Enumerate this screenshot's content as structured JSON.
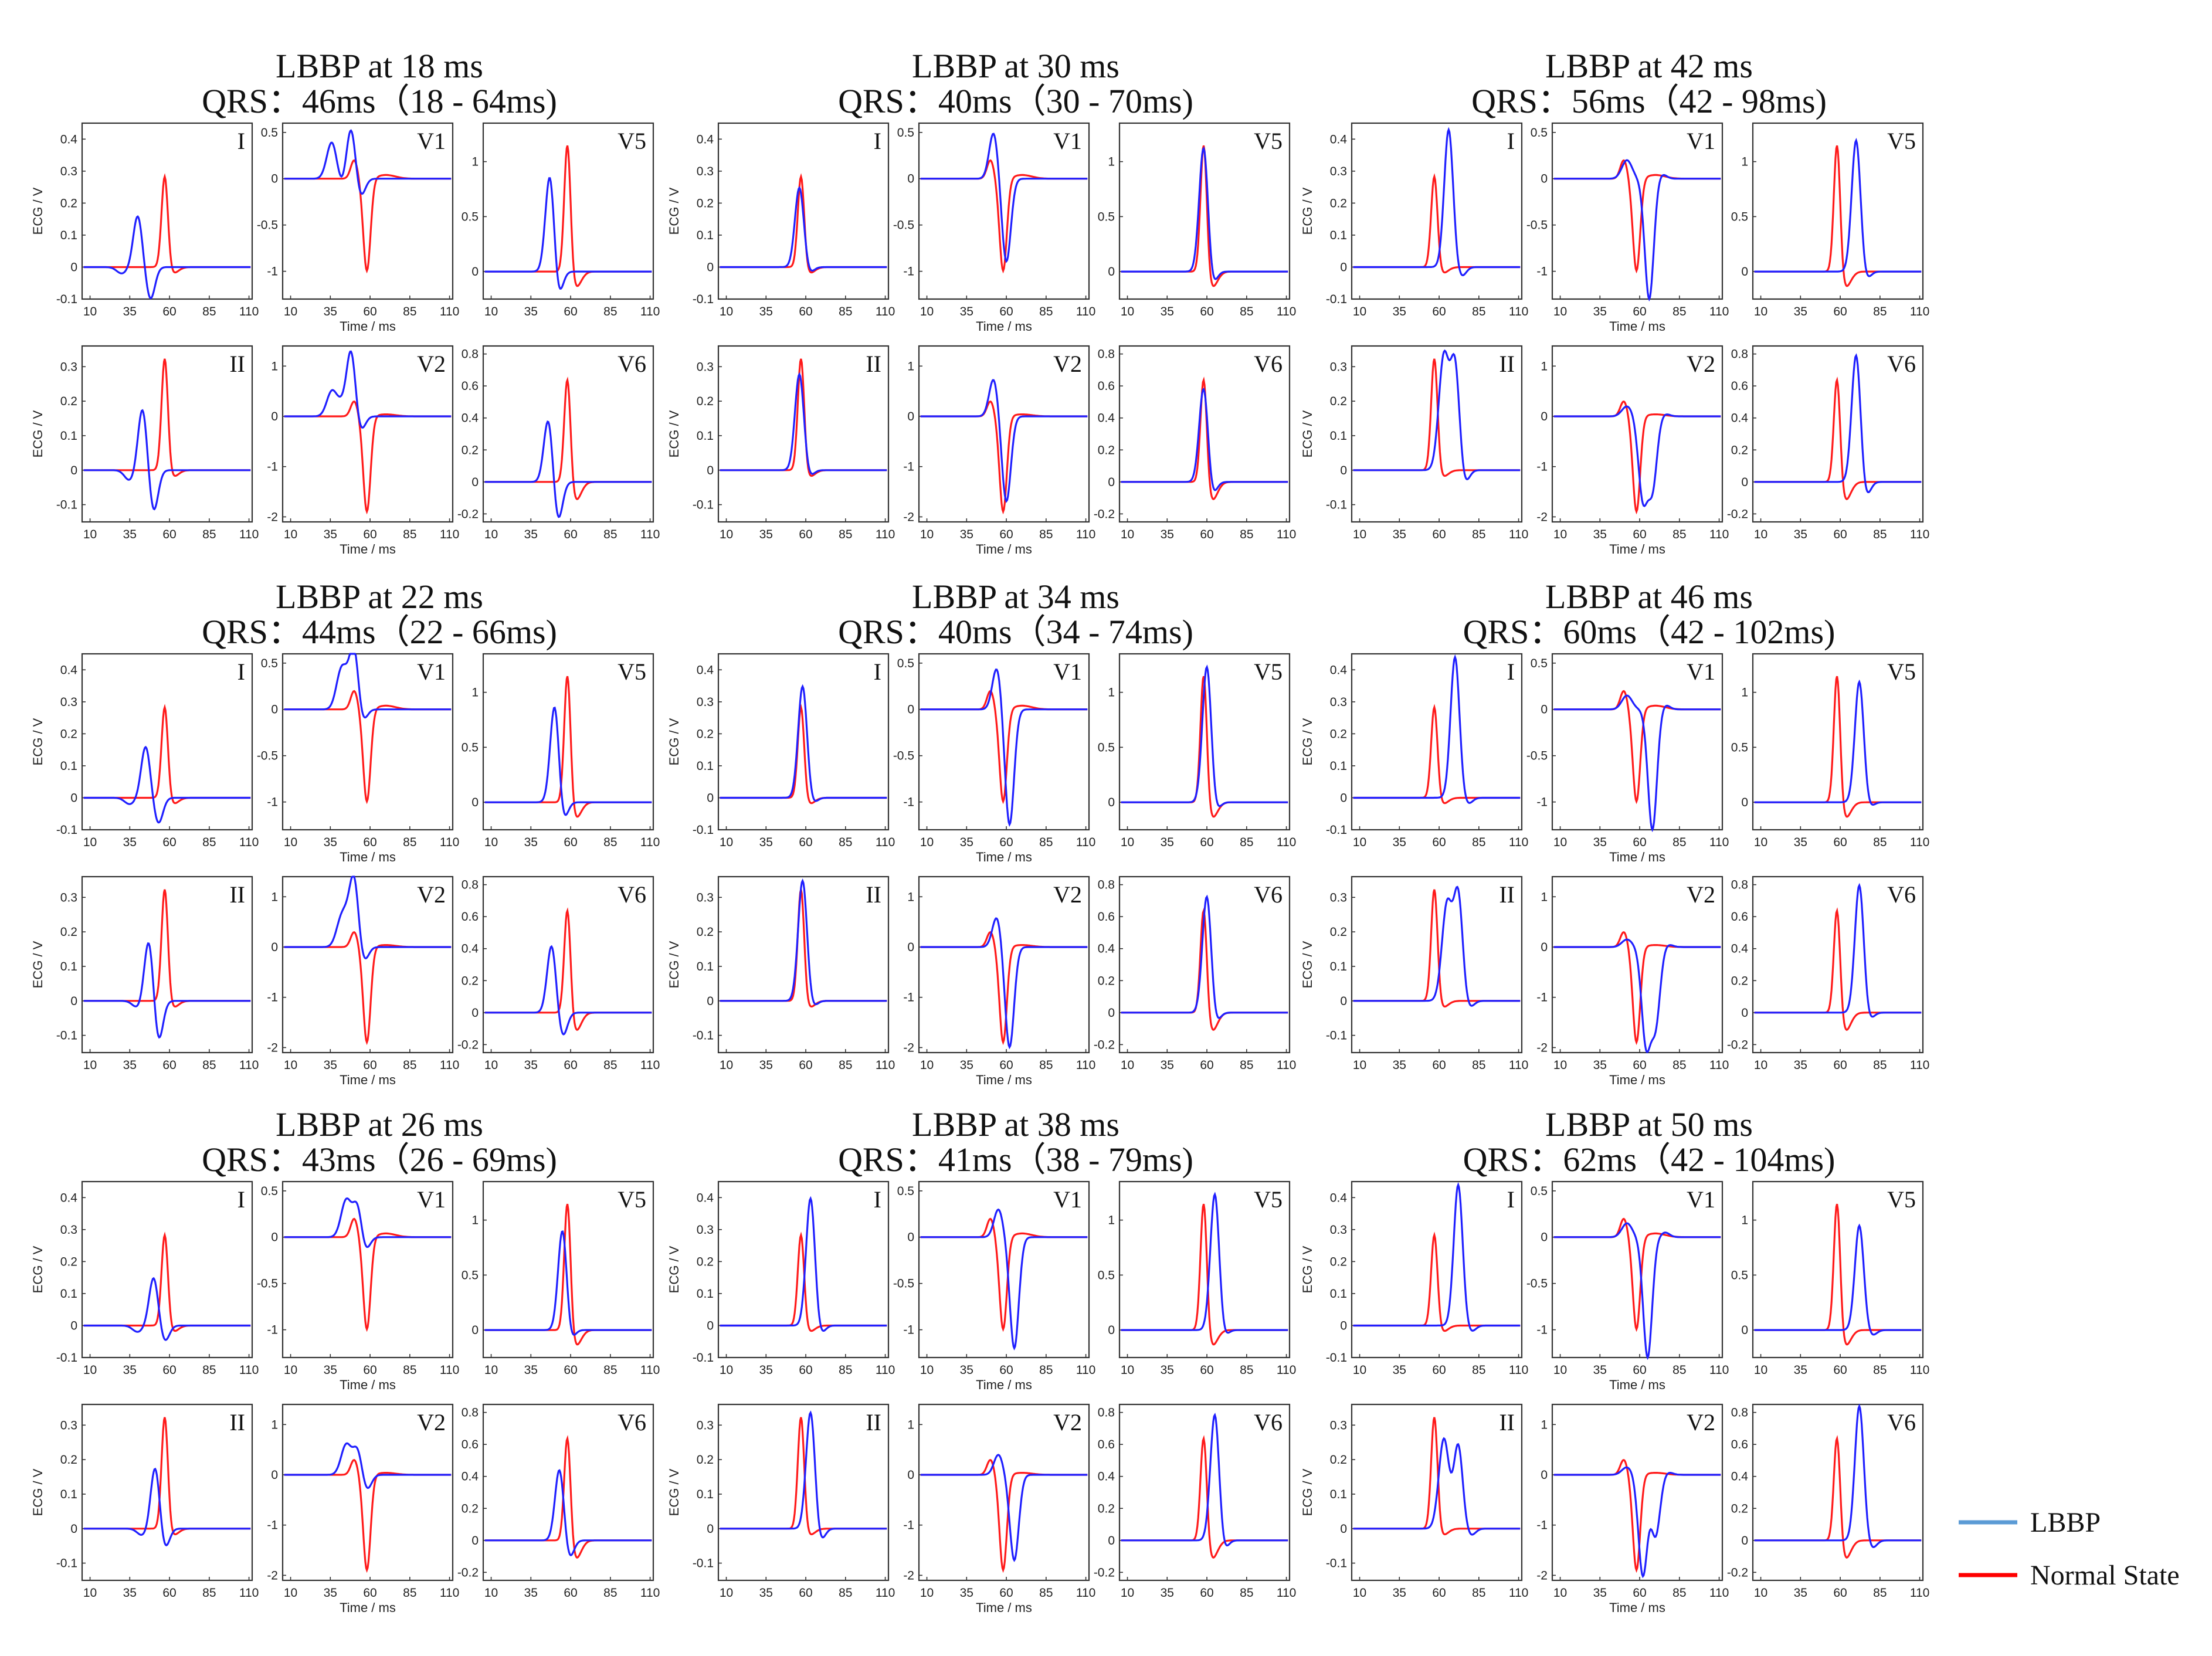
{
  "figure": {
    "legend": [
      {
        "label": "LBBP",
        "color": "#5b9bd5"
      },
      {
        "label": "Normal State",
        "color": "#ff0000"
      }
    ],
    "colors": {
      "lbbp_trace": "#1f1fff",
      "normal_trace": "#ff1a1a",
      "axis": "#333333"
    }
  },
  "chart_data": {
    "type": "line",
    "description_units": {
      "x": "ms",
      "y": "V"
    },
    "shared": {
      "x_ticks": [
        10,
        35,
        60,
        85,
        110
      ],
      "xlim": [
        5,
        112
      ],
      "xlabel": "Time / ms",
      "ylabel": "ECG / V"
    },
    "lead_axes": {
      "I": {
        "ylim": [
          -0.1,
          0.45
        ],
        "yticks": [
          -0.1,
          0,
          0.1,
          0.2,
          0.3,
          0.4
        ],
        "ytick_labels": [
          "-0.1",
          "0",
          "0.1",
          "0.2",
          "0.3",
          "0.4"
        ]
      },
      "V1": {
        "ylim": [
          -1.3,
          0.6
        ],
        "yticks": [
          -1,
          -0.5,
          0,
          0.5
        ],
        "ytick_labels": [
          "-1",
          "-0.5",
          "0",
          "0.5"
        ]
      },
      "V5": {
        "ylim": [
          -0.25,
          1.35
        ],
        "yticks": [
          0,
          0.5,
          1
        ],
        "ytick_labels": [
          "0",
          "0.5",
          "1"
        ]
      },
      "II": {
        "ylim": [
          -0.15,
          0.36
        ],
        "yticks": [
          -0.1,
          0,
          0.1,
          0.2,
          0.3
        ],
        "ytick_labels": [
          "-0.1",
          "0",
          "0.1",
          "0.2",
          "0.3"
        ]
      },
      "V2": {
        "ylim": [
          -2.1,
          1.4
        ],
        "yticks": [
          -2,
          -1,
          0,
          1
        ],
        "ytick_labels": [
          "-2",
          "-1",
          "0",
          "1"
        ]
      },
      "V6": {
        "ylim": [
          -0.25,
          0.85
        ],
        "yticks": [
          -0.2,
          0,
          0.2,
          0.4,
          0.6,
          0.8
        ],
        "ytick_labels": [
          "-0.2",
          "0",
          "0.2",
          "0.4",
          "0.6",
          "0.8"
        ]
      }
    },
    "normal_state": {
      "I": {
        "pre": 0.0,
        "peak_t": 57,
        "peak": 0.29,
        "post": -0.02
      },
      "II": {
        "pre": 0.0,
        "peak_t": 57,
        "peak": 0.33,
        "post": -0.02
      },
      "V1": {
        "pre": 0.0,
        "peak_t": 50,
        "peak": 0.2,
        "min_t": 58,
        "min": -1.0
      },
      "V2": {
        "pre": 0.0,
        "peak_t": 50,
        "peak": 0.3,
        "min_t": 58,
        "min": -1.9
      },
      "V5": {
        "pre": 0.0,
        "peak_t": 58,
        "peak": 1.2,
        "post": -0.15
      },
      "V6": {
        "pre": 0.0,
        "peak_t": 58,
        "peak": 0.68,
        "post": -0.12
      }
    },
    "panels": [
      {
        "title": "LBBP at 18 ms",
        "qrs": "QRS：46ms（18 - 64ms)",
        "pacing_ms": 18,
        "qrs_ms": 46,
        "qrs_range_ms": [
          18,
          64
        ]
      },
      {
        "title": "LBBP at 30 ms",
        "qrs": "QRS：40ms（30 - 70ms)",
        "pacing_ms": 30,
        "qrs_ms": 40,
        "qrs_range_ms": [
          30,
          70
        ]
      },
      {
        "title": "LBBP at 42 ms",
        "qrs": "QRS：56ms（42 - 98ms)",
        "pacing_ms": 42,
        "qrs_ms": 56,
        "qrs_range_ms": [
          42,
          98
        ]
      },
      {
        "title": "LBBP at 22 ms",
        "qrs": "QRS：44ms（22 - 66ms)",
        "pacing_ms": 22,
        "qrs_ms": 44,
        "qrs_range_ms": [
          22,
          66
        ]
      },
      {
        "title": "LBBP at 34 ms",
        "qrs": "QRS：40ms（34 - 74ms)",
        "pacing_ms": 34,
        "qrs_ms": 40,
        "qrs_range_ms": [
          34,
          74
        ]
      },
      {
        "title": "LBBP at 46 ms",
        "qrs": "QRS：60ms（42 - 102ms)",
        "pacing_ms": 46,
        "qrs_ms": 60,
        "qrs_range_ms": [
          42,
          102
        ]
      },
      {
        "title": "LBBP at 26 ms",
        "qrs": "QRS：43ms（26 - 69ms)",
        "pacing_ms": 26,
        "qrs_ms": 43,
        "qrs_range_ms": [
          26,
          69
        ]
      },
      {
        "title": "LBBP at 38 ms",
        "qrs": "QRS：41ms（38 - 79ms)",
        "pacing_ms": 38,
        "qrs_ms": 41,
        "qrs_range_ms": [
          38,
          79
        ]
      },
      {
        "title": "LBBP at 50 ms",
        "qrs": "QRS：62ms（42 - 104ms)",
        "pacing_ms": 50,
        "qrs_ms": 62,
        "qrs_range_ms": [
          42,
          104
        ]
      }
    ],
    "lbbp_by_pacing": {
      "18": {
        "I": {
          "pre": 0,
          "bumps": [
            [
              30,
              -0.02
            ],
            [
              40,
              0.16
            ],
            [
              48,
              -0.1
            ]
          ],
          "end": 0
        },
        "II": {
          "pre": 0,
          "bumps": [
            [
              35,
              -0.03
            ],
            [
              43,
              0.18
            ],
            [
              50,
              -0.12
            ]
          ],
          "end": 0
        },
        "V1": {
          "pre": 0,
          "bumps": [
            [
              36,
              0.4
            ],
            [
              42,
              -0.1
            ],
            [
              48,
              0.55
            ],
            [
              54,
              -0.2
            ]
          ],
          "end": 0
        },
        "V2": {
          "pre": 0,
          "bumps": [
            [
              36,
              0.5
            ],
            [
              42,
              0.2
            ],
            [
              48,
              1.3
            ],
            [
              54,
              -0.3
            ]
          ],
          "end": 0
        },
        "V5": {
          "pre": 0,
          "bumps": [
            [
              47,
              0.9
            ],
            [
              52,
              -0.25
            ]
          ],
          "end": 0
        },
        "V6": {
          "pre": 0,
          "bumps": [
            [
              46,
              0.4
            ],
            [
              52,
              -0.25
            ]
          ],
          "end": 0
        }
      },
      "30": {
        "I": {
          "pre": 0,
          "bumps": [
            [
              56,
              0.25
            ],
            [
              62,
              -0.02
            ]
          ],
          "end": 0
        },
        "II": {
          "pre": 0,
          "bumps": [
            [
              56,
              0.28
            ],
            [
              62,
              -0.02
            ]
          ],
          "end": 0
        },
        "V1": {
          "pre": 0,
          "bumps": [
            [
              52,
              0.5
            ],
            [
              60,
              -0.9
            ]
          ],
          "end": 0
        },
        "V2": {
          "pre": 0,
          "bumps": [
            [
              52,
              0.75
            ],
            [
              60,
              -1.7
            ]
          ],
          "end": 0
        },
        "V5": {
          "pre": 0,
          "bumps": [
            [
              58,
              1.15
            ],
            [
              63,
              -0.15
            ]
          ],
          "end": 0
        },
        "V6": {
          "pre": 0,
          "bumps": [
            [
              58,
              0.6
            ],
            [
              63,
              -0.1
            ]
          ],
          "end": 0
        }
      },
      "42": {
        "I": {
          "pre": 0,
          "bumps": [
            [
              66,
              0.43
            ],
            [
              74,
              -0.03
            ]
          ],
          "end": 0
        },
        "II": {
          "pre": 0,
          "bumps": [
            [
              63,
              0.33
            ],
            [
              70,
              0.3
            ],
            [
              76,
              -0.04
            ]
          ],
          "end": 0
        },
        "V1": {
          "pre": 0,
          "bumps": [
            [
              52,
              0.2
            ],
            [
              66,
              -1.3
            ],
            [
              74,
              0.05
            ]
          ],
          "end": 0
        },
        "V2": {
          "pre": 0,
          "bumps": [
            [
              52,
              0.2
            ],
            [
              62,
              -1.6
            ],
            [
              68,
              -1.4
            ],
            [
              76,
              0.05
            ]
          ],
          "end": 0
        },
        "V5": {
          "pre": 0,
          "bumps": [
            [
              70,
              1.2
            ],
            [
              76,
              -0.08
            ]
          ],
          "end": 0
        },
        "V6": {
          "pre": 0,
          "bumps": [
            [
              70,
              0.8
            ],
            [
              76,
              -0.1
            ]
          ],
          "end": 0
        }
      },
      "22": {
        "I": {
          "pre": 0,
          "bumps": [
            [
              35,
              -0.02
            ],
            [
              45,
              0.16
            ],
            [
              53,
              -0.08
            ]
          ],
          "end": 0
        },
        "II": {
          "pre": 0,
          "bumps": [
            [
              40,
              -0.02
            ],
            [
              47,
              0.18
            ],
            [
              53,
              -0.12
            ]
          ],
          "end": 0
        },
        "V1": {
          "pre": 0,
          "bumps": [
            [
              42,
              0.42
            ],
            [
              46,
              0.1
            ],
            [
              50,
              0.65
            ],
            [
              55,
              -0.15
            ]
          ],
          "end": 0
        },
        "V2": {
          "pre": 0,
          "bumps": [
            [
              42,
              0.55
            ],
            [
              46,
              0.3
            ],
            [
              50,
              1.3
            ],
            [
              56,
              -0.3
            ]
          ],
          "end": 0
        },
        "V5": {
          "pre": 0,
          "bumps": [
            [
              50,
              0.9
            ],
            [
              55,
              -0.2
            ]
          ],
          "end": 0
        },
        "V6": {
          "pre": 0,
          "bumps": [
            [
              48,
              0.42
            ],
            [
              55,
              -0.15
            ]
          ],
          "end": 0
        }
      },
      "34": {
        "I": {
          "pre": 0,
          "bumps": [
            [
              58,
              0.35
            ],
            [
              64,
              -0.02
            ]
          ],
          "end": 0
        },
        "II": {
          "pre": 0,
          "bumps": [
            [
              58,
              0.35
            ],
            [
              64,
              -0.02
            ]
          ],
          "end": 0
        },
        "V1": {
          "pre": 0,
          "bumps": [
            [
              54,
              0.45
            ],
            [
              62,
              -1.25
            ]
          ],
          "end": 0
        },
        "V2": {
          "pre": 0,
          "bumps": [
            [
              54,
              0.6
            ],
            [
              62,
              -2.0
            ]
          ],
          "end": 0
        },
        "V5": {
          "pre": 0,
          "bumps": [
            [
              60,
              1.25
            ],
            [
              65,
              -0.1
            ]
          ],
          "end": 0
        },
        "V6": {
          "pre": 0,
          "bumps": [
            [
              60,
              0.74
            ],
            [
              65,
              -0.08
            ]
          ],
          "end": 0
        }
      },
      "46": {
        "I": {
          "pre": 0,
          "bumps": [
            [
              70,
              0.44
            ],
            [
              78,
              -0.02
            ]
          ],
          "end": 0
        },
        "II": {
          "pre": 0,
          "bumps": [
            [
              65,
              0.28
            ],
            [
              72,
              0.3
            ],
            [
              79,
              -0.02
            ]
          ],
          "end": 0
        },
        "V1": {
          "pre": 0,
          "bumps": [
            [
              52,
              0.15
            ],
            [
              68,
              -1.3
            ],
            [
              76,
              0.05
            ]
          ],
          "end": 0
        },
        "V2": {
          "pre": 0,
          "bumps": [
            [
              52,
              0.15
            ],
            [
              64,
              -1.9
            ],
            [
              70,
              -1.5
            ],
            [
              78,
              0.05
            ]
          ],
          "end": 0
        },
        "V5": {
          "pre": 0,
          "bumps": [
            [
              72,
              1.1
            ],
            [
              78,
              -0.05
            ]
          ],
          "end": 0
        },
        "V6": {
          "pre": 0,
          "bumps": [
            [
              72,
              0.8
            ],
            [
              78,
              -0.05
            ]
          ],
          "end": 0
        }
      },
      "26": {
        "I": {
          "pre": 0,
          "bumps": [
            [
              40,
              -0.02
            ],
            [
              50,
              0.15
            ],
            [
              57,
              -0.05
            ]
          ],
          "end": 0
        },
        "II": {
          "pre": 0,
          "bumps": [
            [
              43,
              -0.02
            ],
            [
              51,
              0.18
            ],
            [
              57,
              -0.06
            ]
          ],
          "end": 0
        },
        "V1": {
          "pre": 0,
          "bumps": [
            [
              45,
              0.4
            ],
            [
              52,
              0.35
            ],
            [
              57,
              -0.15
            ]
          ],
          "end": 0
        },
        "V2": {
          "pre": 0,
          "bumps": [
            [
              45,
              0.6
            ],
            [
              52,
              0.5
            ],
            [
              58,
              -0.3
            ]
          ],
          "end": 0
        },
        "V5": {
          "pre": 0,
          "bumps": [
            [
              55,
              0.95
            ],
            [
              59,
              -0.15
            ]
          ],
          "end": 0
        },
        "V6": {
          "pre": 0,
          "bumps": [
            [
              53,
              0.45
            ],
            [
              59,
              -0.12
            ]
          ],
          "end": 0
        }
      },
      "38": {
        "I": {
          "pre": 0,
          "bumps": [
            [
              63,
              0.4
            ],
            [
              69,
              -0.03
            ]
          ],
          "end": 0
        },
        "II": {
          "pre": 0,
          "bumps": [
            [
              63,
              0.34
            ],
            [
              69,
              -0.04
            ]
          ],
          "end": 0
        },
        "V1": {
          "pre": 0,
          "bumps": [
            [
              55,
              0.3
            ],
            [
              65,
              -1.2
            ]
          ],
          "end": 0
        },
        "V2": {
          "pre": 0,
          "bumps": [
            [
              55,
              0.4
            ],
            [
              65,
              -1.7
            ]
          ],
          "end": 0
        },
        "V5": {
          "pre": 0,
          "bumps": [
            [
              65,
              1.25
            ],
            [
              70,
              -0.08
            ]
          ],
          "end": 0
        },
        "V6": {
          "pre": 0,
          "bumps": [
            [
              65,
              0.8
            ],
            [
              70,
              -0.08
            ]
          ],
          "end": 0
        }
      },
      "50": {
        "I": {
          "pre": 0,
          "bumps": [
            [
              72,
              0.44
            ],
            [
              80,
              -0.02
            ]
          ],
          "end": 0
        },
        "II": {
          "pre": 0,
          "bumps": [
            [
              63,
              0.26
            ],
            [
              72,
              0.24
            ],
            [
              80,
              -0.02
            ]
          ],
          "end": 0
        },
        "V1": {
          "pre": 0,
          "bumps": [
            [
              52,
              0.15
            ],
            [
              65,
              -1.3
            ],
            [
              76,
              0.05
            ]
          ],
          "end": 0
        },
        "V2": {
          "pre": 0,
          "bumps": [
            [
              52,
              0.15
            ],
            [
              62,
              -2.0
            ],
            [
              70,
              -1.2
            ],
            [
              78,
              0.05
            ]
          ],
          "end": 0
        },
        "V5": {
          "pre": 0,
          "bumps": [
            [
              72,
              0.95
            ],
            [
              80,
              -0.05
            ]
          ],
          "end": 0
        },
        "V6": {
          "pre": 0,
          "bumps": [
            [
              72,
              0.84
            ],
            [
              80,
              -0.05
            ]
          ],
          "end": 0
        }
      }
    }
  }
}
